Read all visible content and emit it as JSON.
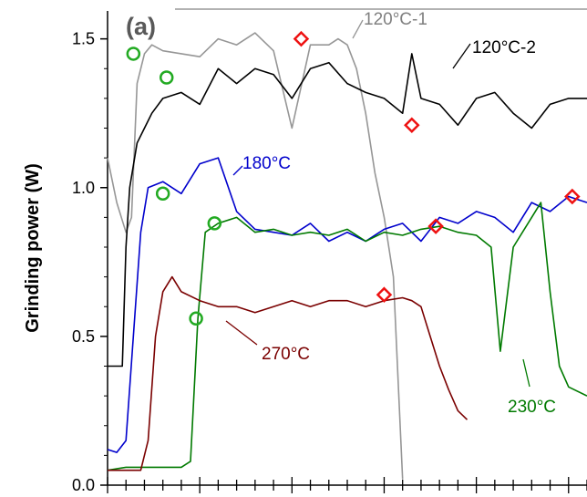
{
  "chart_data": {
    "type": "line",
    "panel_label": "(a)",
    "title": "",
    "xlabel": "",
    "ylabel": "Grinding power (W)",
    "ylim": [
      0,
      1.6
    ],
    "yticks": [
      "0.0",
      "0.5",
      "1.0",
      "1.5"
    ],
    "xlim": [
      0,
      26
    ],
    "grid": false,
    "series": [
      {
        "name": "120°C-1",
        "color": "#969696",
        "x": [
          0,
          0.5,
          1,
          1.3,
          1.6,
          2,
          2.4,
          3,
          4,
          5,
          6,
          7,
          8,
          9,
          10,
          11,
          12,
          12.5,
          13,
          13.5,
          14,
          14.5,
          15,
          15.5,
          16
        ],
        "y": [
          1.1,
          0.95,
          0.85,
          0.9,
          1.35,
          1.45,
          1.48,
          1.46,
          1.45,
          1.44,
          1.5,
          1.48,
          1.52,
          1.46,
          1.2,
          1.48,
          1.48,
          1.5,
          1.48,
          1.4,
          1.25,
          1.05,
          0.9,
          0.7,
          0.02
        ]
      },
      {
        "name": "120°C-2",
        "color": "#000000",
        "x": [
          0,
          0.8,
          1,
          1.2,
          1.6,
          2,
          2.4,
          3,
          4,
          5,
          6,
          7,
          8,
          9,
          10,
          11,
          12,
          13,
          14,
          15,
          16,
          16.5,
          17,
          18,
          19,
          20,
          21,
          22,
          23,
          24,
          25,
          26
        ],
        "y": [
          0.4,
          0.4,
          0.8,
          1.0,
          1.15,
          1.2,
          1.25,
          1.3,
          1.32,
          1.28,
          1.4,
          1.35,
          1.4,
          1.38,
          1.3,
          1.4,
          1.42,
          1.35,
          1.32,
          1.3,
          1.25,
          1.45,
          1.3,
          1.28,
          1.21,
          1.3,
          1.32,
          1.25,
          1.2,
          1.28,
          1.3,
          1.3
        ]
      },
      {
        "name": "180°C",
        "color": "#0000cc",
        "x": [
          0,
          0.5,
          1,
          1.4,
          1.8,
          2.2,
          3,
          4,
          5,
          6,
          7,
          8,
          9,
          10,
          11,
          12,
          13,
          14,
          15,
          16,
          17,
          18,
          19,
          20,
          21,
          22,
          23,
          24,
          25,
          26
        ],
        "y": [
          0.12,
          0.11,
          0.15,
          0.5,
          0.85,
          1.0,
          1.02,
          0.98,
          1.08,
          1.1,
          0.92,
          0.86,
          0.85,
          0.84,
          0.88,
          0.82,
          0.85,
          0.82,
          0.86,
          0.88,
          0.82,
          0.9,
          0.88,
          0.92,
          0.9,
          0.85,
          0.95,
          0.92,
          0.97,
          0.95
        ]
      },
      {
        "name": "230°C",
        "color": "#007a00",
        "x": [
          0,
          1,
          2,
          3,
          4,
          4.5,
          4.9,
          5.3,
          6,
          7,
          8,
          9,
          10,
          11,
          12,
          13,
          14,
          15,
          16,
          17,
          18,
          19,
          20,
          20.8,
          21.3,
          22,
          23,
          23.5,
          24,
          24.5,
          25,
          26
        ],
        "y": [
          0.05,
          0.06,
          0.06,
          0.06,
          0.06,
          0.08,
          0.56,
          0.85,
          0.88,
          0.9,
          0.85,
          0.86,
          0.84,
          0.85,
          0.84,
          0.86,
          0.82,
          0.85,
          0.84,
          0.86,
          0.87,
          0.85,
          0.84,
          0.8,
          0.45,
          0.8,
          0.9,
          0.95,
          0.65,
          0.4,
          0.33,
          0.3
        ]
      },
      {
        "name": "270°C",
        "color": "#7a0000",
        "x": [
          0,
          1.8,
          2.2,
          2.6,
          3,
          3.5,
          4,
          5,
          6,
          7,
          8,
          9,
          10,
          11,
          12,
          13,
          14,
          15,
          16,
          16.5,
          17,
          17.5,
          18,
          18.5,
          19,
          19.5
        ],
        "y": [
          0.05,
          0.05,
          0.15,
          0.5,
          0.65,
          0.7,
          0.65,
          0.62,
          0.6,
          0.6,
          0.58,
          0.6,
          0.62,
          0.6,
          0.62,
          0.62,
          0.6,
          0.62,
          0.63,
          0.62,
          0.6,
          0.5,
          0.4,
          0.32,
          0.25,
          0.22
        ]
      }
    ],
    "start_markers": {
      "color": "#22aa22",
      "shape": "circle",
      "points": [
        {
          "x": 1.4,
          "y": 1.45
        },
        {
          "x": 3.2,
          "y": 1.37
        },
        {
          "x": 3.0,
          "y": 0.98
        },
        {
          "x": 5.8,
          "y": 0.88
        },
        {
          "x": 4.8,
          "y": 0.56
        }
      ]
    },
    "end_markers": {
      "color": "#ee1111",
      "shape": "diamond",
      "points": [
        {
          "x": 10.5,
          "y": 1.5
        },
        {
          "x": 16.5,
          "y": 1.21
        },
        {
          "x": 25.2,
          "y": 0.97
        },
        {
          "x": 17.8,
          "y": 0.87
        },
        {
          "x": 15.0,
          "y": 0.64
        }
      ]
    }
  }
}
